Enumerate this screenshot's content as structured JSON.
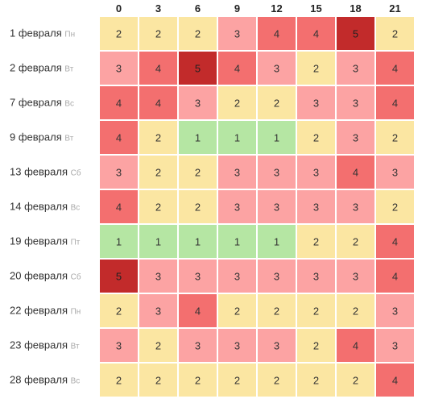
{
  "chart_data": {
    "type": "heatmap",
    "columns": [
      "0",
      "3",
      "6",
      "9",
      "12",
      "15",
      "18",
      "21"
    ],
    "rows": [
      {
        "date": "1 февраля",
        "dow": "Пн",
        "values": [
          2,
          2,
          2,
          3,
          4,
          4,
          5,
          2
        ]
      },
      {
        "date": "2 февраля",
        "dow": "Вт",
        "values": [
          3,
          4,
          5,
          4,
          3,
          2,
          3,
          4
        ]
      },
      {
        "date": "7 февраля",
        "dow": "Вс",
        "values": [
          4,
          4,
          3,
          2,
          2,
          3,
          3,
          4
        ]
      },
      {
        "date": "9 февраля",
        "dow": "Вт",
        "values": [
          4,
          2,
          1,
          1,
          1,
          2,
          3,
          2
        ]
      },
      {
        "date": "13 февраля",
        "dow": "Сб",
        "values": [
          3,
          2,
          2,
          3,
          3,
          3,
          4,
          3
        ]
      },
      {
        "date": "14 февраля",
        "dow": "Вс",
        "values": [
          4,
          2,
          2,
          3,
          3,
          3,
          3,
          2
        ]
      },
      {
        "date": "19 февраля",
        "dow": "Пт",
        "values": [
          1,
          1,
          1,
          1,
          1,
          2,
          2,
          4
        ]
      },
      {
        "date": "20 февраля",
        "dow": "Сб",
        "values": [
          5,
          3,
          3,
          3,
          3,
          3,
          3,
          4
        ]
      },
      {
        "date": "22 февраля",
        "dow": "Пн",
        "values": [
          2,
          3,
          4,
          2,
          2,
          2,
          2,
          3
        ]
      },
      {
        "date": "23 февраля",
        "dow": "Вт",
        "values": [
          3,
          2,
          3,
          3,
          3,
          2,
          4,
          3
        ]
      },
      {
        "date": "28 февраля",
        "dow": "Вс",
        "values": [
          2,
          2,
          2,
          2,
          2,
          2,
          2,
          4
        ]
      }
    ],
    "color_scale": {
      "1": "#b5e6a3",
      "2": "#fbe6a2",
      "3": "#fca3a3",
      "4": "#f36f6f",
      "5": "#c22b2b"
    },
    "text_colors": {
      "1": "#333333",
      "2": "#333333",
      "3": "#333333",
      "4": "#333333",
      "5": "#222222"
    }
  }
}
